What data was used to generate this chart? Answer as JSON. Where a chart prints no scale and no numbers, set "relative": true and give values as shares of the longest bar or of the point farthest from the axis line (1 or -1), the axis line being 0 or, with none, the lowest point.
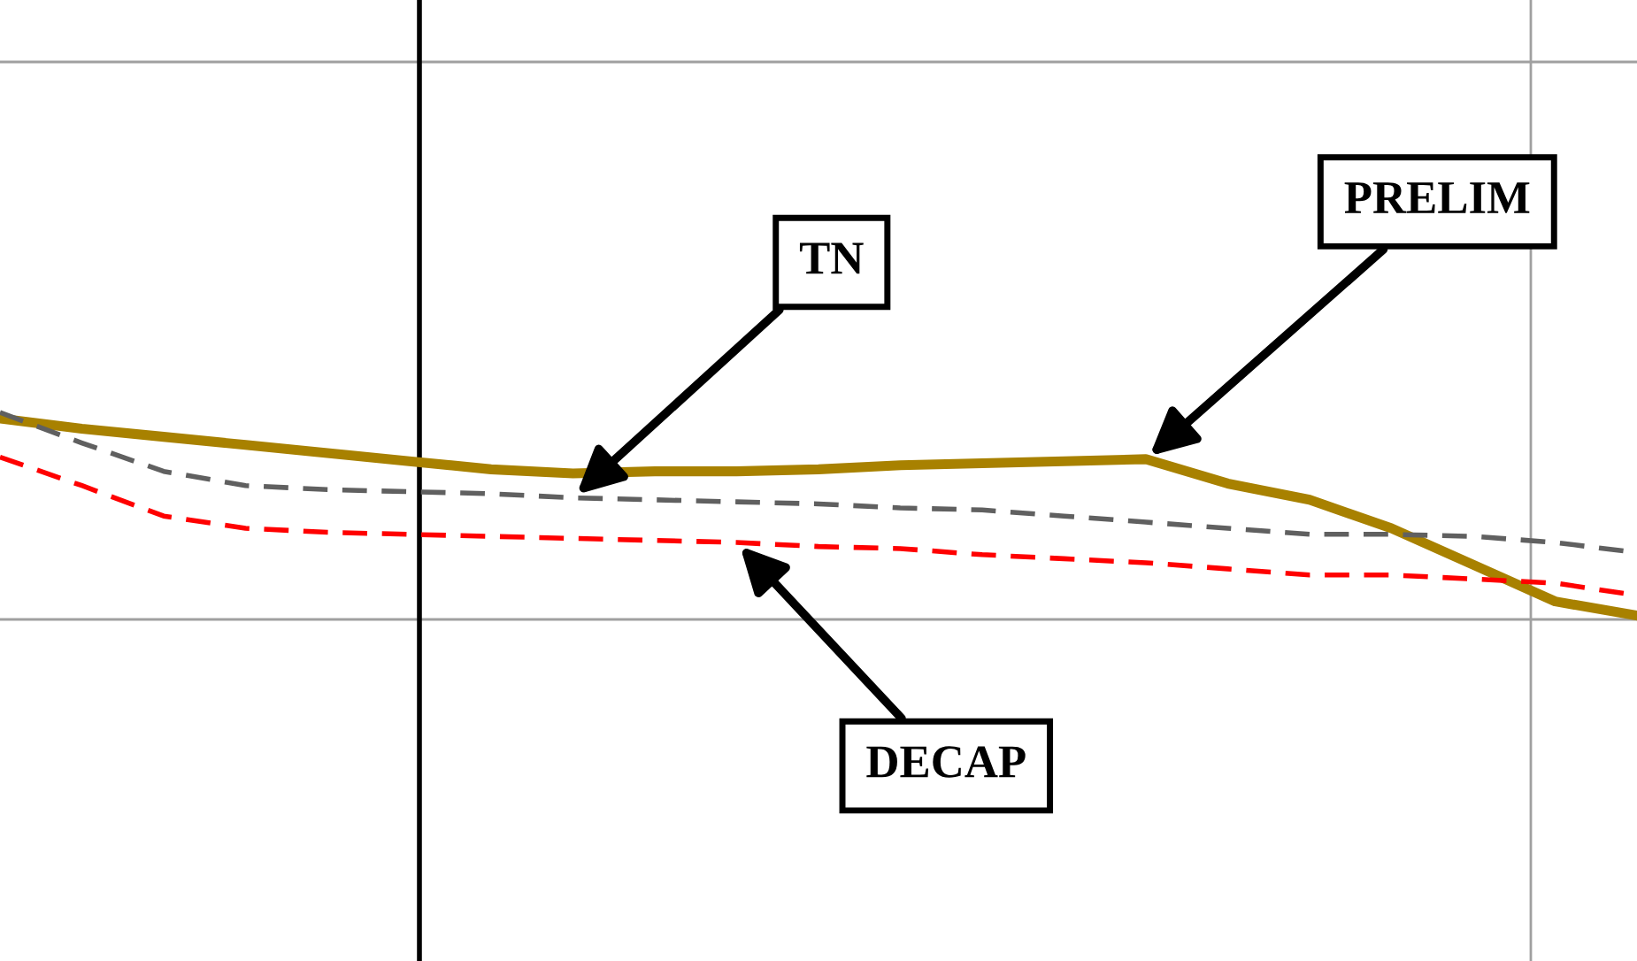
{
  "chart_data": {
    "type": "line",
    "relative": true,
    "categories": [
      null,
      null,
      null,
      null,
      null,
      null,
      null,
      null,
      null,
      null,
      null,
      null,
      null,
      null,
      null,
      null,
      null,
      null,
      null,
      null,
      null
    ],
    "series": [
      {
        "name": "PRELIM",
        "color": "#a88100",
        "line_style": "solid",
        "values": [
          0.97,
          0.92,
          0.88,
          0.84,
          0.8,
          0.76,
          0.72,
          0.7,
          0.71,
          0.71,
          0.72,
          0.74,
          0.75,
          0.76,
          0.77,
          0.65,
          0.57,
          0.43,
          0.25,
          0.07,
          0
        ]
      },
      {
        "name": "TN",
        "color": "#606060",
        "line_style": "dashed",
        "values": [
          1.0,
          0.85,
          0.71,
          0.64,
          0.62,
          0.61,
          0.6,
          0.58,
          0.57,
          0.56,
          0.55,
          0.53,
          0.52,
          0.49,
          0.46,
          0.43,
          0.4,
          0.4,
          0.39,
          0.36,
          0.31
        ]
      },
      {
        "name": "DECAP",
        "color": "#ff0000",
        "line_style": "dashed",
        "values": [
          0.78,
          0.64,
          0.49,
          0.43,
          0.41,
          0.4,
          0.39,
          0.38,
          0.37,
          0.36,
          0.34,
          0.33,
          0.3,
          0.28,
          0.26,
          0.23,
          0.2,
          0.2,
          0.18,
          0.16,
          0.1
        ]
      }
    ]
  }
}
